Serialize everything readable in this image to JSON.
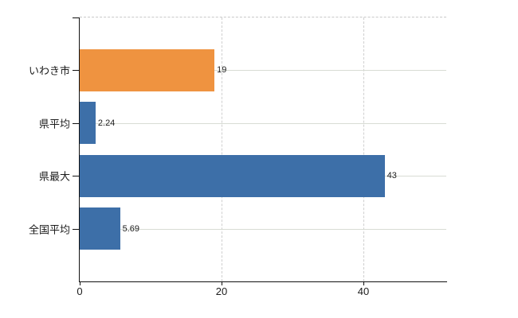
{
  "chart_data": {
    "type": "bar",
    "orientation": "horizontal",
    "title": "",
    "legend": "none",
    "categories": [
      "いわき市",
      "県平均",
      "県最大",
      "全国平均"
    ],
    "values": [
      19,
      2.24,
      43,
      5.69
    ],
    "value_labels": [
      "19",
      "2.24",
      "43",
      "5.69"
    ],
    "bar_colors": [
      "#ef9340",
      "#3d6fa8",
      "#3d6fa8",
      "#3d6fa8"
    ],
    "x_axis": {
      "min": 0,
      "max": 51.7,
      "ticks": [
        0,
        20,
        40
      ],
      "tick_labels": [
        "0",
        "20",
        "40"
      ]
    },
    "y_axis": {
      "tick_marks": true
    },
    "grid": {
      "horizontal_solid_at_category_rows": true,
      "vertical_dashed_at_x_ticks": true,
      "top_boundary_dashed": true
    },
    "colors": {
      "axis": "#111111",
      "grid_solid": "#d8dcd4",
      "grid_dashed": "#cfcfcf",
      "text": "#1c1c1c",
      "background": "#ffffff",
      "bar_orange": "#ef9340",
      "bar_blue": "#3d6fa8"
    }
  }
}
